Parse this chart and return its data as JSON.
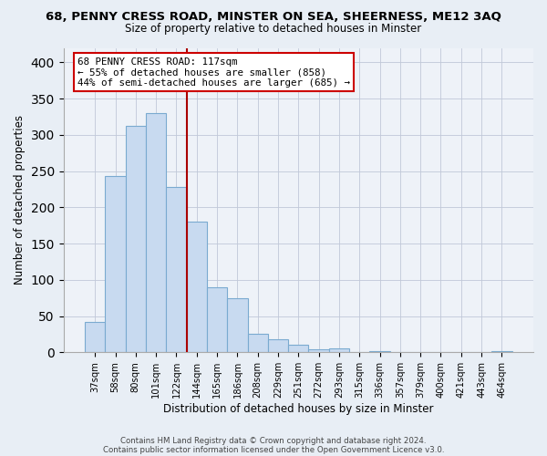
{
  "title_line1": "68, PENNY CRESS ROAD, MINSTER ON SEA, SHEERNESS, ME12 3AQ",
  "title_line2": "Size of property relative to detached houses in Minster",
  "xlabel": "Distribution of detached houses by size in Minster",
  "ylabel": "Number of detached properties",
  "bar_labels": [
    "37sqm",
    "58sqm",
    "80sqm",
    "101sqm",
    "122sqm",
    "144sqm",
    "165sqm",
    "186sqm",
    "208sqm",
    "229sqm",
    "251sqm",
    "272sqm",
    "293sqm",
    "315sqm",
    "336sqm",
    "357sqm",
    "379sqm",
    "400sqm",
    "421sqm",
    "443sqm",
    "464sqm"
  ],
  "bar_heights": [
    42,
    243,
    312,
    330,
    228,
    180,
    90,
    75,
    25,
    18,
    10,
    4,
    5,
    0,
    2,
    0,
    0,
    0,
    0,
    0,
    2
  ],
  "bar_color": "#c8daf0",
  "bar_edgecolor": "#7aaad0",
  "annotation_line_idx": 4,
  "annotation_line_color": "#aa0000",
  "annotation_box_text": "68 PENNY CRESS ROAD: 117sqm\n← 55% of detached houses are smaller (858)\n44% of semi-detached houses are larger (685) →",
  "ylim": [
    0,
    420
  ],
  "yticks": [
    0,
    50,
    100,
    150,
    200,
    250,
    300,
    350,
    400
  ],
  "footnote_line1": "Contains HM Land Registry data © Crown copyright and database right 2024.",
  "footnote_line2": "Contains public sector information licensed under the Open Government Licence v3.0.",
  "bg_color": "#e8eef5",
  "plot_bg_color": "#eef2f8"
}
